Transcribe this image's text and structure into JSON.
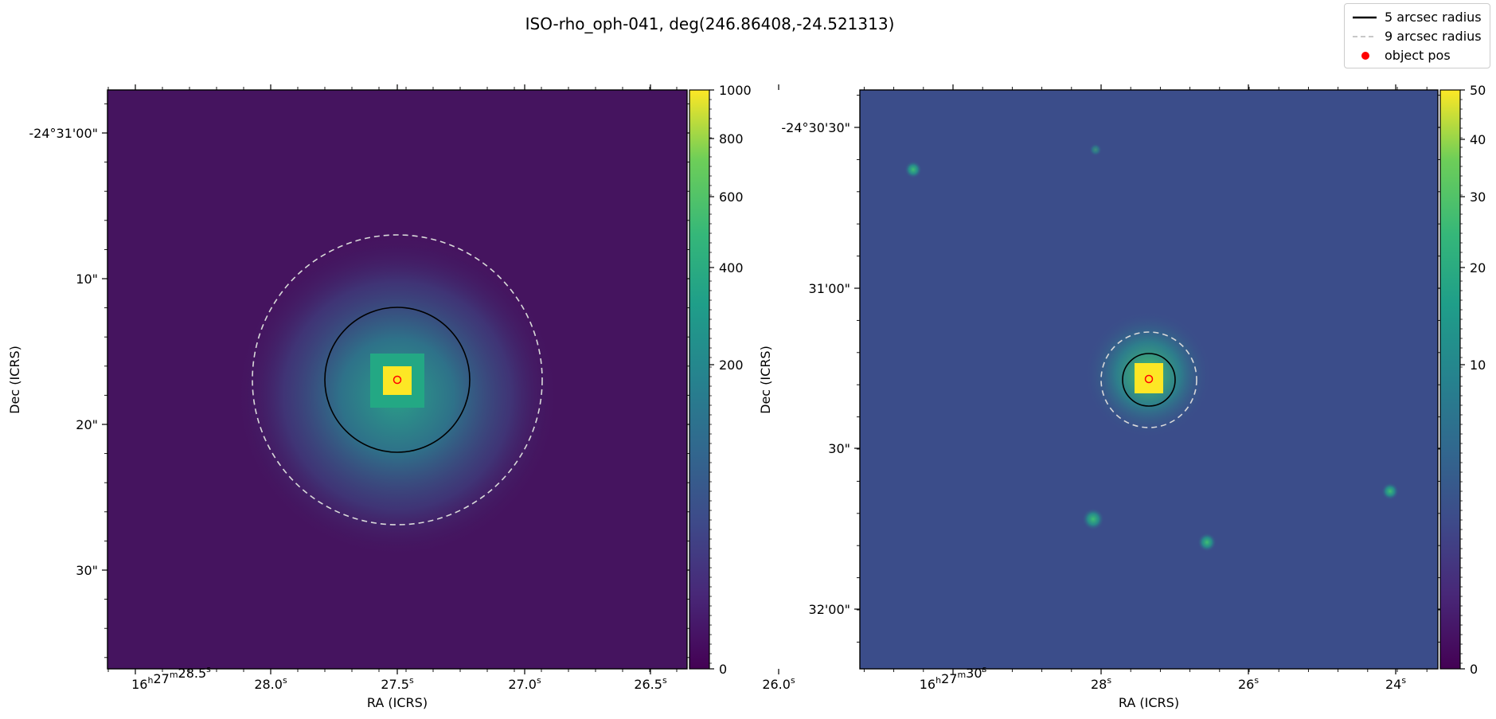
{
  "figure": {
    "title": "ISO-rho_oph-041, deg(246.86408,-24.521313)"
  },
  "legend": {
    "items": [
      {
        "label": "5 arcsec radius",
        "style": "solid",
        "color": "#000000"
      },
      {
        "label": "9 arcsec radius",
        "style": "dashed",
        "color": "#c8c8c8"
      },
      {
        "label": "object pos",
        "style": "marker",
        "color": "#ff0000"
      }
    ]
  },
  "chart_data": [
    {
      "type": "heatmap",
      "colormap": "viridis",
      "xlabel": "RA (ICRS)",
      "ylabel": "Dec (ICRS)",
      "x_ticks": [
        {
          "main": "16",
          "sup1": "h",
          "mid": "27",
          "sup2": "m",
          "sec": "28.5",
          "sup3": "s"
        },
        {
          "sec": "28.0",
          "sup3": "s"
        },
        {
          "sec": "27.5",
          "sup3": "s"
        },
        {
          "sec": "27.0",
          "sup3": "s"
        },
        {
          "sec": "26.5",
          "sup3": "s"
        },
        {
          "sec": "26.0",
          "sup3": "s"
        }
      ],
      "y_ticks": [
        "-24°31'00\"",
        "10\"",
        "20\"",
        "30\""
      ],
      "colorbar": {
        "ticks": [
          "1000",
          "800",
          "600",
          "400",
          "200",
          "0"
        ],
        "values": [
          1000,
          800,
          600,
          400,
          200,
          0
        ]
      },
      "object_pos": {
        "ra_deg": 246.86408,
        "dec_deg": -24.521313
      },
      "apertures_arcsec": [
        5,
        9
      ],
      "background_color": "#45145f",
      "peak_color": "#fde725"
    },
    {
      "type": "heatmap",
      "colormap": "viridis",
      "xlabel": "RA (ICRS)",
      "ylabel": "Dec (ICRS)",
      "x_ticks": [
        {
          "main": "16",
          "sup1": "h",
          "mid": "27",
          "sup2": "m",
          "sec": "30",
          "sup3": "s"
        },
        {
          "sec": "28",
          "sup3": "s"
        },
        {
          "sec": "26",
          "sup3": "s"
        },
        {
          "sec": "24",
          "sup3": "s"
        }
      ],
      "y_ticks": [
        "-24°30'30\"",
        "31'00\"",
        "30\"",
        "32'00\""
      ],
      "colorbar": {
        "ticks": [
          "50",
          "40",
          "30",
          "20",
          "10",
          "0"
        ],
        "values": [
          50,
          40,
          30,
          20,
          10,
          0
        ]
      },
      "object_pos": {
        "ra_deg": 246.86408,
        "dec_deg": -24.521313
      },
      "apertures_arcsec": [
        5,
        9
      ],
      "background_color": "#3b4d8a",
      "peak_color": "#fde725"
    }
  ]
}
